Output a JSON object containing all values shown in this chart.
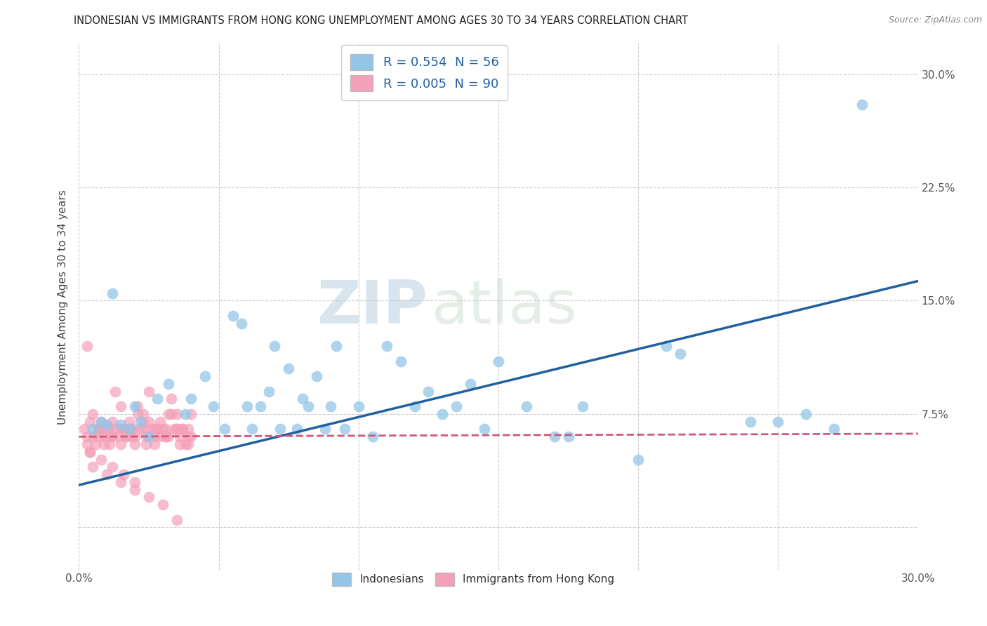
{
  "title": "INDONESIAN VS IMMIGRANTS FROM HONG KONG UNEMPLOYMENT AMONG AGES 30 TO 34 YEARS CORRELATION CHART",
  "source": "Source: ZipAtlas.com",
  "ylabel": "Unemployment Among Ages 30 to 34 years",
  "x_min": 0.0,
  "x_max": 0.3,
  "y_min": -0.028,
  "y_max": 0.32,
  "y_ticks": [
    0.0,
    0.075,
    0.15,
    0.225,
    0.3
  ],
  "x_ticks": [
    0.0,
    0.05,
    0.1,
    0.15,
    0.2,
    0.25,
    0.3
  ],
  "blue_color": "#92C5E8",
  "blue_color_dark": "#2060A0",
  "pink_color": "#F4A0B8",
  "pink_color_dark": "#D05878",
  "watermark_zip": "ZIP",
  "watermark_atlas": "atlas",
  "legend_text_blue": "R = 0.554  N = 56",
  "legend_text_pink": "R = 0.005  N = 90",
  "legend_label_blue": "Indonesians",
  "legend_label_pink": "Immigrants from Hong Kong",
  "blue_line_x0": 0.0,
  "blue_line_y0": 0.028,
  "blue_line_x1": 0.3,
  "blue_line_y1": 0.163,
  "pink_line_x0": 0.0,
  "pink_line_y0": 0.06,
  "pink_line_x1": 0.3,
  "pink_line_y1": 0.062,
  "blue_x": [
    0.012,
    0.02,
    0.025,
    0.028,
    0.032,
    0.038,
    0.04,
    0.045,
    0.048,
    0.052,
    0.055,
    0.058,
    0.06,
    0.062,
    0.065,
    0.068,
    0.07,
    0.072,
    0.075,
    0.078,
    0.08,
    0.082,
    0.085,
    0.088,
    0.09,
    0.092,
    0.095,
    0.1,
    0.105,
    0.11,
    0.115,
    0.12,
    0.125,
    0.13,
    0.135,
    0.14,
    0.145,
    0.15,
    0.16,
    0.17,
    0.175,
    0.18,
    0.2,
    0.21,
    0.215,
    0.24,
    0.25,
    0.26,
    0.27,
    0.28,
    0.005,
    0.008,
    0.01,
    0.015,
    0.018,
    0.022
  ],
  "blue_y": [
    0.155,
    0.08,
    0.06,
    0.085,
    0.095,
    0.075,
    0.085,
    0.1,
    0.08,
    0.065,
    0.14,
    0.135,
    0.08,
    0.065,
    0.08,
    0.09,
    0.12,
    0.065,
    0.105,
    0.065,
    0.085,
    0.08,
    0.1,
    0.065,
    0.08,
    0.12,
    0.065,
    0.08,
    0.06,
    0.12,
    0.11,
    0.08,
    0.09,
    0.075,
    0.08,
    0.095,
    0.065,
    0.11,
    0.08,
    0.06,
    0.06,
    0.08,
    0.045,
    0.12,
    0.115,
    0.07,
    0.07,
    0.075,
    0.065,
    0.28,
    0.065,
    0.07,
    0.068,
    0.068,
    0.065,
    0.07
  ],
  "pink_x": [
    0.002,
    0.003,
    0.004,
    0.005,
    0.006,
    0.007,
    0.008,
    0.009,
    0.01,
    0.011,
    0.012,
    0.013,
    0.014,
    0.015,
    0.016,
    0.017,
    0.018,
    0.019,
    0.02,
    0.021,
    0.022,
    0.023,
    0.024,
    0.025,
    0.026,
    0.027,
    0.028,
    0.029,
    0.03,
    0.031,
    0.032,
    0.033,
    0.034,
    0.035,
    0.036,
    0.037,
    0.038,
    0.039,
    0.04,
    0.003,
    0.005,
    0.007,
    0.009,
    0.011,
    0.013,
    0.015,
    0.017,
    0.019,
    0.021,
    0.023,
    0.025,
    0.027,
    0.029,
    0.031,
    0.033,
    0.035,
    0.037,
    0.039,
    0.004,
    0.008,
    0.012,
    0.016,
    0.02,
    0.024,
    0.028,
    0.032,
    0.036,
    0.04,
    0.005,
    0.01,
    0.015,
    0.02,
    0.025,
    0.03,
    0.035,
    0.003,
    0.007,
    0.011,
    0.015,
    0.019,
    0.023,
    0.027,
    0.031,
    0.035,
    0.039,
    0.004,
    0.008,
    0.012,
    0.016,
    0.02
  ],
  "pink_y": [
    0.065,
    0.06,
    0.07,
    0.075,
    0.055,
    0.065,
    0.07,
    0.06,
    0.065,
    0.055,
    0.07,
    0.065,
    0.06,
    0.08,
    0.065,
    0.06,
    0.07,
    0.065,
    0.06,
    0.075,
    0.065,
    0.07,
    0.055,
    0.09,
    0.065,
    0.06,
    0.065,
    0.07,
    0.065,
    0.06,
    0.075,
    0.085,
    0.065,
    0.075,
    0.06,
    0.065,
    0.055,
    0.065,
    0.075,
    0.12,
    0.06,
    0.065,
    0.055,
    0.06,
    0.09,
    0.065,
    0.06,
    0.065,
    0.08,
    0.075,
    0.07,
    0.065,
    0.06,
    0.065,
    0.075,
    0.065,
    0.065,
    0.06,
    0.05,
    0.065,
    0.06,
    0.065,
    0.055,
    0.06,
    0.065,
    0.06,
    0.055,
    0.06,
    0.04,
    0.035,
    0.03,
    0.025,
    0.02,
    0.015,
    0.005,
    0.055,
    0.06,
    0.065,
    0.055,
    0.06,
    0.065,
    0.055,
    0.06,
    0.065,
    0.055,
    0.05,
    0.045,
    0.04,
    0.035,
    0.03
  ]
}
